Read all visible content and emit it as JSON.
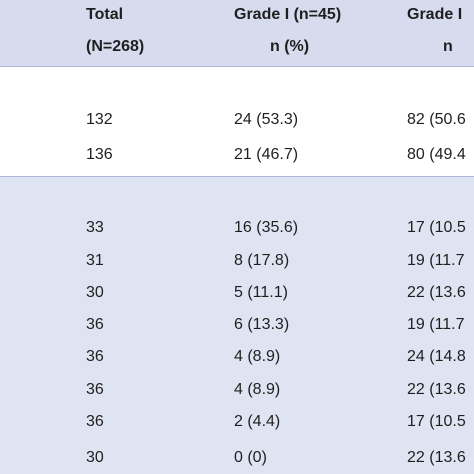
{
  "header": {
    "row1": [
      "Total",
      "Grade I (n=45)",
      "Grade I"
    ],
    "row2": [
      "(N=268)",
      "n (%)",
      "n"
    ]
  },
  "rows": [
    [
      "132",
      "24 (53.3)",
      "82 (50.6"
    ],
    [
      "136",
      "21 (46.7)",
      "80 (49.4"
    ],
    [
      "33",
      "16 (35.6)",
      "17 (10.5"
    ],
    [
      "31",
      "8 (17.8)",
      "19 (11.7"
    ],
    [
      "30",
      "5 (11.1)",
      "22 (13.6"
    ],
    [
      "36",
      "6 (13.3)",
      "19 (11.7"
    ],
    [
      "36",
      "4 (8.9)",
      "24 (14.8"
    ],
    [
      "36",
      "4 (8.9)",
      "22 (13.6"
    ],
    [
      "36",
      "2 (4.4)",
      "17 (10.5"
    ],
    [
      "30",
      "0 (0)",
      "22 (13.6"
    ]
  ],
  "colors": {
    "header_band": "#d6dcee",
    "body_band": "#dfe4f2",
    "rule": "#aeb7d3"
  }
}
